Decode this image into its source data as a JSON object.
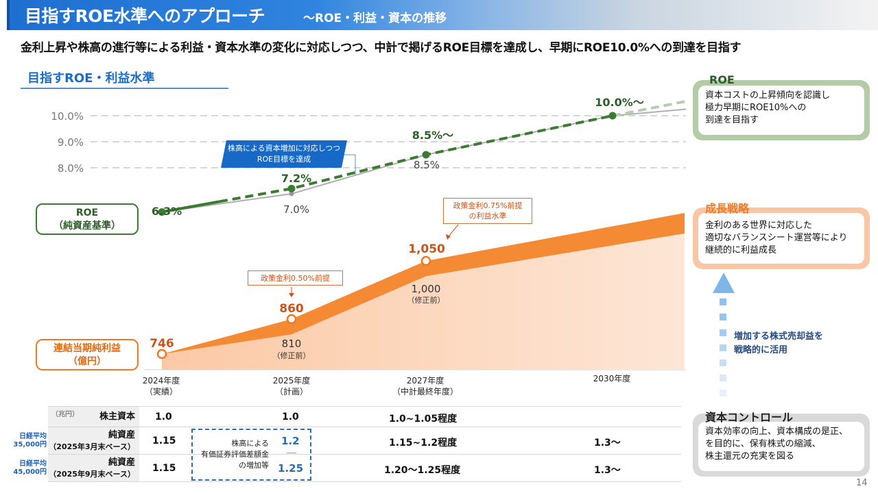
{
  "header": {
    "title": "目指すROE水準へのアプローチ",
    "subtitle": "～ROE・利益・資本の推移"
  },
  "lead": "金利上昇や株高の進行等による利益・資本水準の変化に対応しつつ、中計で掲げるROE目標を達成し、早期にROE10.0%への到達を目指す",
  "section_title": "目指すROE・利益水準",
  "labels": {
    "roe_line1": "ROE",
    "roe_line2": "（純資産基準）",
    "profit_line1": "連結当期純利益",
    "profit_line2": "（億円）"
  },
  "callouts": {
    "blue_line1": "株高による資本増加に対応しつつ",
    "blue_line2": "ROE目標を達成",
    "rate050": "政策金利0.50%前提",
    "rate075_line1": "政策金利0.75%前提",
    "rate075_line2": "の利益水準"
  },
  "years": [
    {
      "line1": "2024年度",
      "line2": "（実績）"
    },
    {
      "line1": "2025年度",
      "line2": "（計画）"
    },
    {
      "line1": "2027年度",
      "line2": "（中計最終年度）"
    },
    {
      "line1": "2030年度",
      "line2": ""
    }
  ],
  "chart_data": [
    {
      "type": "line",
      "title": "ROE（純資産基準）",
      "yticks": [
        "8.0%",
        "9.0%",
        "10.0%"
      ],
      "ylim": [
        5.5,
        10.5
      ],
      "grid": true,
      "categories": [
        "2024年度",
        "2025年度",
        "2027年度",
        "2030年度"
      ],
      "series": [
        {
          "name": "ROE target",
          "values": [
            6.3,
            7.2,
            8.5,
            10.0
          ],
          "labels": [
            "6.3%",
            "7.2%",
            "8.5%～",
            "10.0%～"
          ],
          "color": "#3d7a33",
          "style": "dashed"
        },
        {
          "name": "ROE before revision",
          "values": [
            6.3,
            7.0,
            8.5,
            10.0
          ],
          "labels": [
            "",
            "7.0%",
            "8.5%",
            ""
          ],
          "color": "#aaaaaa",
          "style": "solid"
        }
      ]
    },
    {
      "type": "area",
      "title": "連結当期純利益（億円）",
      "categories": [
        "2024年度",
        "2025年度",
        "2027年度",
        "2030年度"
      ],
      "series": [
        {
          "name": "Net profit (plan)",
          "values": [
            746,
            860,
            1050,
            null
          ],
          "labels": [
            "746",
            "860",
            "1,050",
            ""
          ],
          "color": "#f58220"
        },
        {
          "name": "Net profit (before revision)",
          "values": [
            746,
            810,
            1000,
            null
          ],
          "labels": [
            "",
            "810",
            "1,000",
            ""
          ],
          "sublabels": [
            "",
            "（修正前）",
            "（修正前）",
            ""
          ],
          "color": "#fcd2b4"
        }
      ]
    }
  ],
  "panels": {
    "roe": {
      "title": "ROE",
      "lines": [
        "資本コストの上昇傾向を認識し",
        "極力早期にROE10%への",
        "到達を目指す"
      ],
      "color": "#b3cca6"
    },
    "growth": {
      "title": "成長戦略",
      "lines": [
        "金利のある世界に対応した",
        "適切なバランスシート運営等により",
        "継続的に利益成長"
      ],
      "color": "#f9c7a5"
    },
    "capital": {
      "title": "資本コントロール",
      "lines": [
        "資本効率の向上、資本構成の是正、",
        "を目的に、保有株式の縮減、",
        "株主還元の充実を図る"
      ],
      "color": "#d9d9d9"
    },
    "arrow_text_line1": "増加する株式売却益を",
    "arrow_text_line2": "戦略的に活用"
  },
  "table": {
    "unit": "（兆円）",
    "rows": [
      {
        "nikkei_line1": "",
        "nikkei_line2": "",
        "head": "株主資本",
        "sub": "",
        "c2024": "1.0",
        "c2025": "1.0",
        "c2027": "1.0~1.05程度",
        "c2030": ""
      },
      {
        "nikkei_line1": "日経平均",
        "nikkei_line2": "35,000円",
        "head": "純資産",
        "sub": "（2025年3月末ベース）",
        "c2024": "1.15",
        "c2025": "1.2",
        "c2027": "1.15~1.2程度",
        "c2030": "1.3～"
      },
      {
        "nikkei_line1": "日経平均",
        "nikkei_line2": "45,000円",
        "head": "純資産",
        "sub": "（2025年9月末ベース）",
        "c2024": "1.15",
        "c2025": "1.25",
        "c2027": "1.20～1.25程度",
        "c2030": "1.3～"
      }
    ],
    "note_line1": "株高による",
    "note_line2": "有価証券評価差額金",
    "note_line3": "の増加等"
  },
  "page_number": "14"
}
